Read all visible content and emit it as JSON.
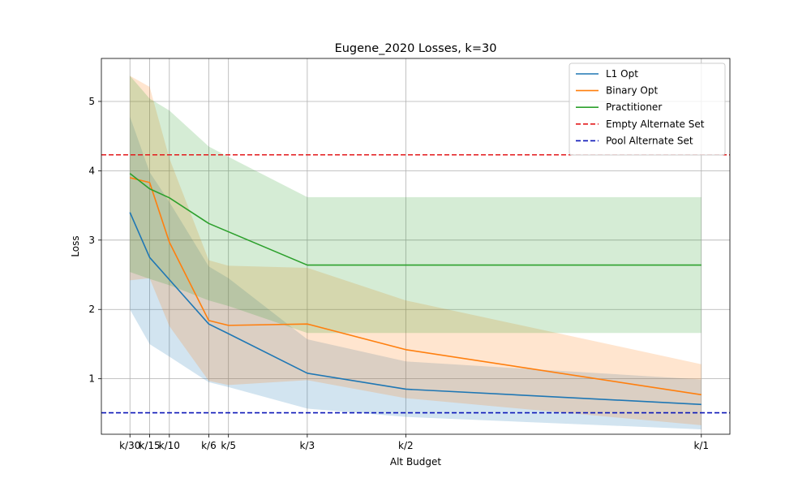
{
  "chart_data": {
    "type": "line",
    "title": "Eugene_2020 Losses, k=30",
    "xlabel": "Alt Budget",
    "ylabel": "Loss",
    "x": [
      1,
      2,
      3,
      5,
      6,
      10,
      15,
      30
    ],
    "xtick_labels": [
      "k/30",
      "k/15",
      "k/10",
      "k/6",
      "k/5",
      "k/3",
      "k/2",
      "k/1"
    ],
    "xlim": [
      -0.45,
      31.45
    ],
    "ylim": [
      0.2,
      5.62
    ],
    "yticks": [
      1,
      2,
      3,
      4,
      5
    ],
    "grid": true,
    "legend_position": "top-right",
    "series": [
      {
        "name": "L1 Opt",
        "color": "#1f77b4",
        "values": [
          3.4,
          2.75,
          2.43,
          1.79,
          1.65,
          1.08,
          0.85,
          0.63
        ],
        "lower": [
          2.0,
          1.5,
          1.32,
          0.95,
          0.88,
          0.57,
          0.45,
          0.27
        ],
        "upper": [
          4.78,
          3.98,
          3.55,
          2.62,
          2.45,
          1.57,
          1.25,
          0.99
        ]
      },
      {
        "name": "Binary Opt",
        "color": "#ff7f0e",
        "values": [
          3.9,
          3.83,
          2.97,
          1.84,
          1.77,
          1.79,
          1.42,
          0.77
        ],
        "lower": [
          2.42,
          2.45,
          1.76,
          0.97,
          0.91,
          0.98,
          0.72,
          0.33
        ],
        "upper": [
          5.37,
          5.21,
          4.18,
          2.71,
          2.63,
          2.6,
          2.13,
          1.21
        ]
      },
      {
        "name": "Practitioner",
        "color": "#2ca02c",
        "values": [
          3.96,
          3.74,
          3.61,
          3.24,
          3.12,
          2.64,
          2.64,
          2.64
        ],
        "lower": [
          2.54,
          2.44,
          2.35,
          2.13,
          2.05,
          1.66,
          1.66,
          1.66
        ],
        "upper": [
          5.37,
          5.04,
          4.87,
          4.35,
          4.2,
          3.62,
          3.62,
          3.62
        ]
      }
    ],
    "reference_lines": [
      {
        "name": "Empty Alternate Set",
        "color": "#e31a1c",
        "y": 4.23,
        "style": "dashed"
      },
      {
        "name": "Pool Alternate Set",
        "color": "#0b16b8",
        "y": 0.51,
        "style": "dashed"
      }
    ]
  }
}
